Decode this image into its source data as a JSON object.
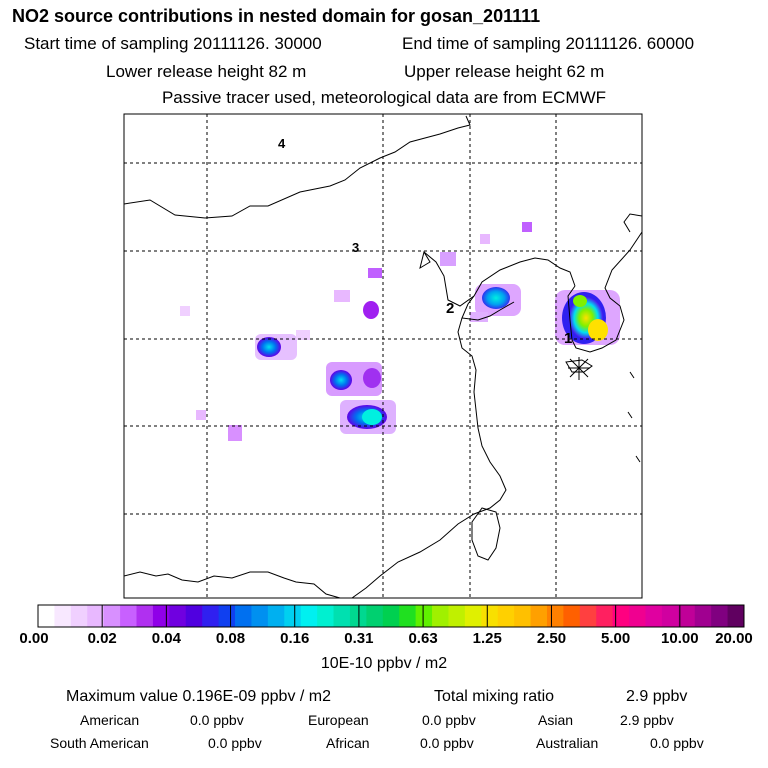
{
  "header": {
    "title": "NO2 source contributions in nested domain for gosan_201111",
    "start_time": "Start time of sampling 20111126. 30000",
    "end_time": "End time of sampling 20111126. 60000",
    "lower_height": "Lower release height   82 m",
    "upper_height": "Upper release height   62 m",
    "tracer_note": "Passive tracer used, meteorological data are from ECMWF"
  },
  "map": {
    "point_labels": [
      "4",
      "3",
      "2",
      "1"
    ],
    "receptor_marker": "star-icon"
  },
  "colorbar": {
    "ticks": [
      "0.00",
      "0.02",
      "0.04",
      "0.08",
      "0.16",
      "0.31",
      "0.63",
      "1.25",
      "2.50",
      "5.00",
      "10.00",
      "20.00"
    ],
    "unit_label": "10E-10 ppbv / m2",
    "colors": [
      "#ffffff",
      "#f8e8ff",
      "#f0d0ff",
      "#e8b8ff",
      "#d890ff",
      "#c860ff",
      "#b030f0",
      "#9000e8",
      "#7000e0",
      "#5000e0",
      "#3020f0",
      "#1040f0",
      "#0070f0",
      "#0090f0",
      "#00b0f0",
      "#00d0f0",
      "#00f0f0",
      "#00f0d0",
      "#00e0b0",
      "#00d890",
      "#00d070",
      "#00d050",
      "#20e020",
      "#60f000",
      "#a0f000",
      "#c0f000",
      "#e0f000",
      "#f8e000",
      "#ffd000",
      "#ffc000",
      "#ffa000",
      "#ff8000",
      "#ff6000",
      "#ff4040",
      "#ff2060",
      "#ff0080",
      "#f00090",
      "#e000a0",
      "#d000a0",
      "#c00098",
      "#a00090",
      "#800080",
      "#600060"
    ]
  },
  "stats": {
    "max_label": "Maximum value  0.196E-09 ppbv / m2",
    "total_label": "Total mixing ratio",
    "total_value": "2.9 ppbv"
  },
  "regions": [
    {
      "name": "American",
      "value": "0.0 ppbv"
    },
    {
      "name": "European",
      "value": "0.0 ppbv"
    },
    {
      "name": "Asian",
      "value": "2.9 ppbv"
    },
    {
      "name": "South American",
      "value": "0.0 ppbv"
    },
    {
      "name": "African",
      "value": "0.0 ppbv"
    },
    {
      "name": "Australian",
      "value": "0.0 ppbv"
    }
  ]
}
